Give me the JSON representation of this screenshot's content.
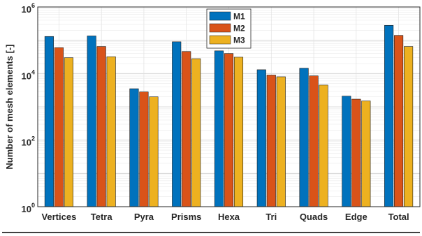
{
  "chart_data": {
    "type": "bar",
    "title": "",
    "xlabel": "",
    "ylabel": "Number of mesh elements [-]",
    "yscale": "log",
    "ylim": [
      1,
      1000000
    ],
    "ytick_labels": [
      {
        "base": "10",
        "exp": "0"
      },
      {
        "base": "10",
        "exp": "2"
      },
      {
        "base": "10",
        "exp": "4"
      },
      {
        "base": "10",
        "exp": "6"
      }
    ],
    "grid": true,
    "legend_position": "top-center",
    "categories": [
      "Vertices",
      "Tetra",
      "Pyra",
      "Prisms",
      "Hexa",
      "Tri",
      "Quads",
      "Edge",
      "Total"
    ],
    "series": [
      {
        "name": "M1",
        "color": "#0072BD",
        "values": [
          130000,
          135000,
          3500,
          90000,
          48000,
          13000,
          14500,
          2100,
          280000
        ]
      },
      {
        "name": "M2",
        "color": "#D95319",
        "values": [
          60000,
          65000,
          2800,
          46000,
          40000,
          9000,
          8500,
          1700,
          140000
        ]
      },
      {
        "name": "M3",
        "color": "#EDB120",
        "values": [
          30000,
          32000,
          2000,
          28000,
          31000,
          8000,
          4500,
          1500,
          65000
        ]
      }
    ]
  }
}
